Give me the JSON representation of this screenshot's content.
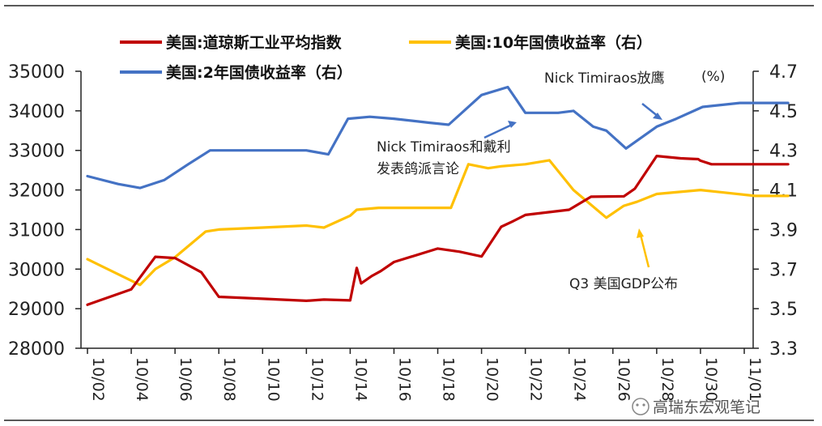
{
  "chart_data": {
    "type": "line",
    "title": "",
    "x_labels": [
      "10/02",
      "10/04",
      "10/06",
      "10/08",
      "10/10",
      "10/12",
      "10/14",
      "10/16",
      "10/18",
      "10/20",
      "10/22",
      "10/24",
      "10/26",
      "10/28",
      "10/30",
      "11/01"
    ],
    "left_axis": {
      "ylim": [
        28000,
        35000
      ],
      "ticks": [
        "28000",
        "29000",
        "30000",
        "31000",
        "32000",
        "33000",
        "34000",
        "35000"
      ]
    },
    "right_axis": {
      "unit": "(%)",
      "ylim": [
        3.3,
        4.7
      ],
      "ticks": [
        "3.3",
        "3.5",
        "3.7",
        "3.9",
        "4.1",
        "4.3",
        "4.5",
        "4.7"
      ]
    },
    "series": [
      {
        "name": "美国:道琼斯工业平均指数",
        "axis": "left",
        "color": "#c00000",
        "x": [
          0,
          1,
          1.55,
          2,
          2.6,
          3,
          4,
          5,
          5.4,
          6,
          6.15,
          6.25,
          6.5,
          6.7,
          7,
          8,
          8.5,
          9,
          9.45,
          9.7,
          10,
          11,
          11.5,
          12.25,
          12.5,
          13,
          13.55,
          13.95,
          14,
          14.25,
          15,
          16
        ],
        "values": [
          29100,
          29490,
          30310,
          30280,
          29920,
          29300,
          29250,
          29200,
          29230,
          29210,
          30030,
          29640,
          29830,
          29950,
          30180,
          30520,
          30440,
          30320,
          31070,
          31200,
          31370,
          31500,
          31830,
          31840,
          32030,
          32860,
          32800,
          32780,
          32740,
          32650,
          32650,
          32650
        ]
      },
      {
        "name": "美国:10年国债收益率（右）",
        "axis": "right",
        "color": "#ffc000",
        "x": [
          0,
          1.2,
          1.55,
          2,
          2.7,
          3,
          4,
          5,
          5.4,
          6,
          6.15,
          6.65,
          7,
          8.3,
          8.7,
          9.15,
          9.45,
          10,
          10.55,
          11.1,
          11.85,
          12.25,
          12.55,
          13,
          14,
          15.25,
          16
        ],
        "values": [
          3.75,
          3.62,
          3.7,
          3.76,
          3.89,
          3.9,
          3.91,
          3.92,
          3.91,
          3.97,
          4.0,
          4.01,
          4.01,
          4.01,
          4.23,
          4.21,
          4.22,
          4.23,
          4.25,
          4.1,
          3.96,
          4.02,
          4.04,
          4.08,
          4.1,
          4.07,
          4.07
        ]
      },
      {
        "name": "美国:2年国债收益率（右）",
        "axis": "right",
        "color": "#4472c4",
        "x": [
          0,
          0.7,
          1.2,
          1.75,
          2.3,
          2.8,
          3.35,
          3.8,
          4.35,
          5.0,
          5.5,
          5.95,
          6.45,
          7,
          7.8,
          8.25,
          9,
          9.6,
          10,
          10.75,
          11.1,
          11.55,
          11.85,
          12.3,
          13,
          13.45,
          14.05,
          14.9,
          15.5,
          16
        ],
        "values": [
          4.17,
          4.13,
          4.11,
          4.15,
          4.23,
          4.3,
          4.3,
          4.3,
          4.3,
          4.3,
          4.28,
          4.46,
          4.47,
          4.46,
          4.44,
          4.43,
          4.58,
          4.62,
          4.49,
          4.49,
          4.5,
          4.42,
          4.4,
          4.31,
          4.42,
          4.46,
          4.52,
          4.54,
          4.54,
          4.54
        ]
      }
    ],
    "annotations": [
      {
        "label": "Nick Timiraos放鹰",
        "sub": ""
      },
      {
        "label": "Nick Timiraos和戴利",
        "sub": "发表鸽派言论"
      },
      {
        "label": "Q3 美国GDP公布",
        "sub": ""
      }
    ],
    "watermark": "高瑞东宏观笔记"
  }
}
